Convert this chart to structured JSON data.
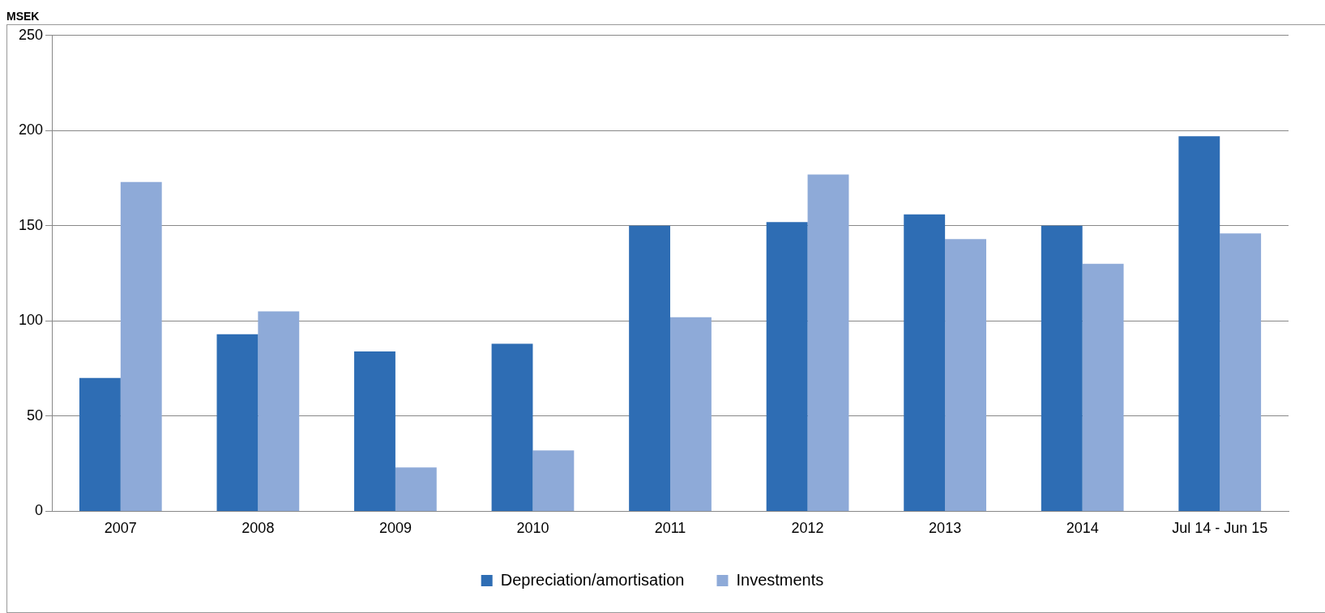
{
  "chart_data": {
    "type": "bar",
    "ylabel": "MSEK",
    "categories": [
      "2007",
      "2008",
      "2009",
      "2010",
      "2011",
      "2012",
      "2013",
      "2014",
      "Jul 14 - Jun 15"
    ],
    "series": [
      {
        "name": "Depreciation/amortisation",
        "color": "#2e6db4",
        "values": [
          70,
          93,
          84,
          88,
          150,
          152,
          156,
          150,
          197
        ]
      },
      {
        "name": "Investments",
        "color": "#8eaad8",
        "values": [
          173,
          105,
          23,
          32,
          102,
          177,
          143,
          130,
          146
        ]
      }
    ],
    "ylim": [
      0,
      250
    ],
    "yticks": [
      0,
      50,
      100,
      150,
      200,
      250
    ],
    "grid": "y",
    "legend": "bottom"
  }
}
